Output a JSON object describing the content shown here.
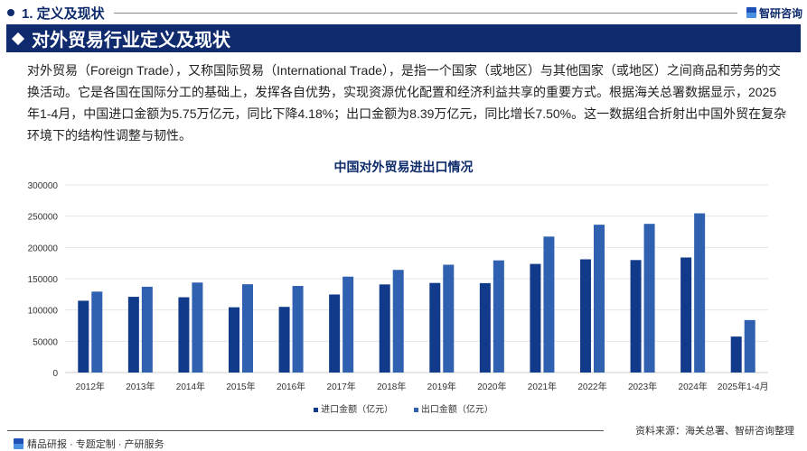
{
  "header": {
    "section": "1. 定义及现状",
    "brand": "智研咨询"
  },
  "banner": {
    "title": "对外贸易行业定义及现状"
  },
  "paragraph": "对外贸易（Foreign Trade），又称国际贸易（International Trade），是指一个国家（或地区）与其他国家（或地区）之间商品和劳务的交换活动。它是各国在国际分工的基础上，发挥各自优势，实现资源优化配置和经济利益共享的重要方式。根据海关总署数据显示，2025年1-4月，中国进口金额为5.75万亿元，同比下降4.18%；出口金额为8.39万亿元，同比增长7.50%。这一数据组合折射出中国外贸在复杂环境下的结构性调整与韧性。",
  "chart_data": {
    "type": "bar",
    "title": "中国对外贸易进出口情况",
    "categories": [
      "2012年",
      "2013年",
      "2014年",
      "2015年",
      "2016年",
      "2017年",
      "2018年",
      "2019年",
      "2020年",
      "2021年",
      "2022年",
      "2023年",
      "2024年",
      "2025年1-4月"
    ],
    "series": [
      {
        "name": "进口金额（亿元）",
        "color": "#123a8a",
        "values": [
          114801,
          121037,
          120358,
          104336,
          104967,
          124790,
          140874,
          143254,
          142936,
          173661,
          181024,
          179842,
          183923,
          57500
        ]
      },
      {
        "name": "出口金额（亿元）",
        "color": "#3060b0",
        "values": [
          129359,
          137131,
          143884,
          141167,
          138419,
          153309,
          164129,
          172374,
          179326,
          217348,
          236337,
          237726,
          254545,
          83900
        ]
      }
    ],
    "yticks": [
      "0",
      "50000",
      "100000",
      "150000",
      "200000",
      "250000",
      "300000"
    ],
    "ylim": [
      0,
      300000
    ],
    "grid": true,
    "legend": "bottom"
  },
  "footer": {
    "source": "资料来源：海关总署、智研咨询整理",
    "tagline": "精品研报 · 专题定制 · 产研服务"
  }
}
